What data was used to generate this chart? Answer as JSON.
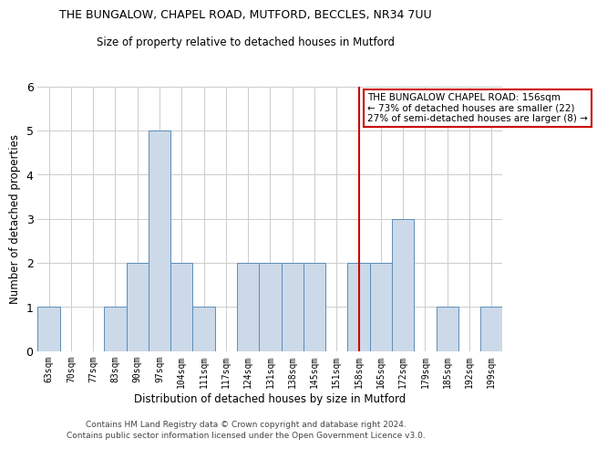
{
  "title_line1": "THE BUNGALOW, CHAPEL ROAD, MUTFORD, BECCLES, NR34 7UU",
  "title_line2": "Size of property relative to detached houses in Mutford",
  "xlabel": "Distribution of detached houses by size in Mutford",
  "ylabel": "Number of detached properties",
  "categories": [
    "63sqm",
    "70sqm",
    "77sqm",
    "83sqm",
    "90sqm",
    "97sqm",
    "104sqm",
    "111sqm",
    "117sqm",
    "124sqm",
    "131sqm",
    "138sqm",
    "145sqm",
    "151sqm",
    "158sqm",
    "165sqm",
    "172sqm",
    "179sqm",
    "185sqm",
    "192sqm",
    "199sqm"
  ],
  "values": [
    1,
    0,
    0,
    1,
    2,
    5,
    2,
    1,
    0,
    2,
    2,
    2,
    2,
    0,
    2,
    2,
    3,
    0,
    1,
    0,
    1
  ],
  "bar_color": "#ccd9e8",
  "bar_edge_color": "#5b8db8",
  "highlight_bar_index": 14,
  "highlight_line_color": "#cc0000",
  "ylim": [
    0,
    6
  ],
  "yticks": [
    0,
    1,
    2,
    3,
    4,
    5,
    6
  ],
  "annotation_text": "THE BUNGALOW CHAPEL ROAD: 156sqm\n← 73% of detached houses are smaller (22)\n27% of semi-detached houses are larger (8) →",
  "annotation_box_color": "#cc0000",
  "footer_line1": "Contains HM Land Registry data © Crown copyright and database right 2024.",
  "footer_line2": "Contains public sector information licensed under the Open Government Licence v3.0.",
  "background_color": "#ffffff",
  "grid_color": "#cccccc"
}
